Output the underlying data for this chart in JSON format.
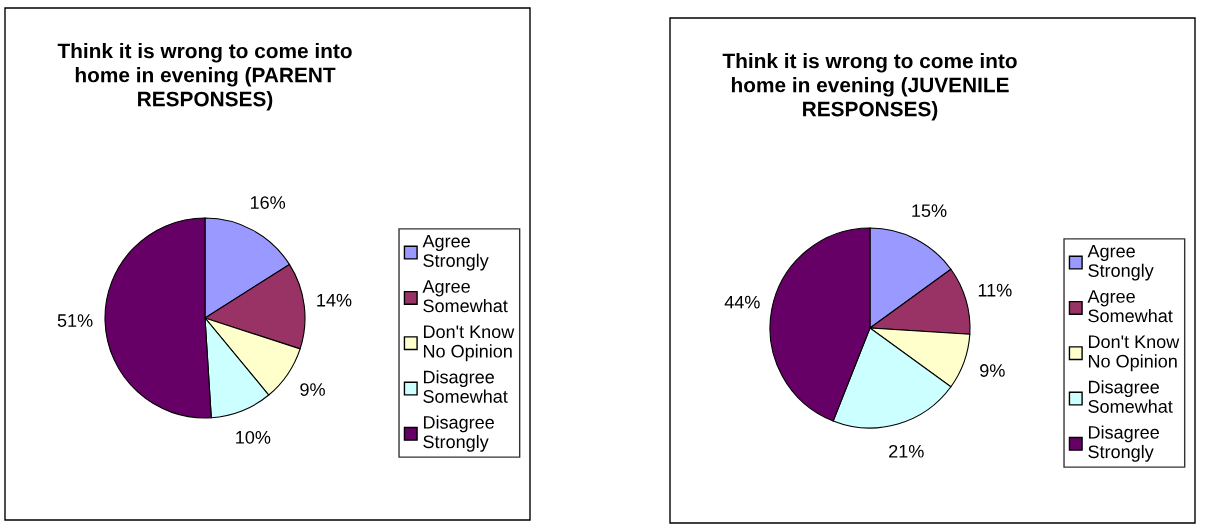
{
  "chart_data": [
    {
      "type": "pie",
      "title": "Think it is wrong to come into home in evening (PARENT RESPONSES)",
      "categories": [
        "Agree Strongly",
        "Agree Somewhat",
        "Don't Know No Opinion",
        "Disagree Somewhat",
        "Disagree Strongly"
      ],
      "values": [
        16,
        14,
        9,
        10,
        51
      ],
      "value_labels": [
        "16%",
        "14%",
        "9%",
        "10%",
        "51%"
      ],
      "colors": [
        "#9999ff",
        "#993366",
        "#ffffcc",
        "#ccffff",
        "#660066"
      ],
      "legend": "right"
    },
    {
      "type": "pie",
      "title": "Think it is wrong to come into home in evening (JUVENILE RESPONSES)",
      "categories": [
        "Agree Strongly",
        "Agree Somewhat",
        "Don't Know No Opinion",
        "Disagree Somewhat",
        "Disagree Strongly"
      ],
      "values": [
        15,
        11,
        9,
        21,
        44
      ],
      "value_labels": [
        "15%",
        "11%",
        "9%",
        "21%",
        "44%"
      ],
      "colors": [
        "#9999ff",
        "#993366",
        "#ffffcc",
        "#ccffff",
        "#660066"
      ],
      "legend": "right"
    }
  ]
}
